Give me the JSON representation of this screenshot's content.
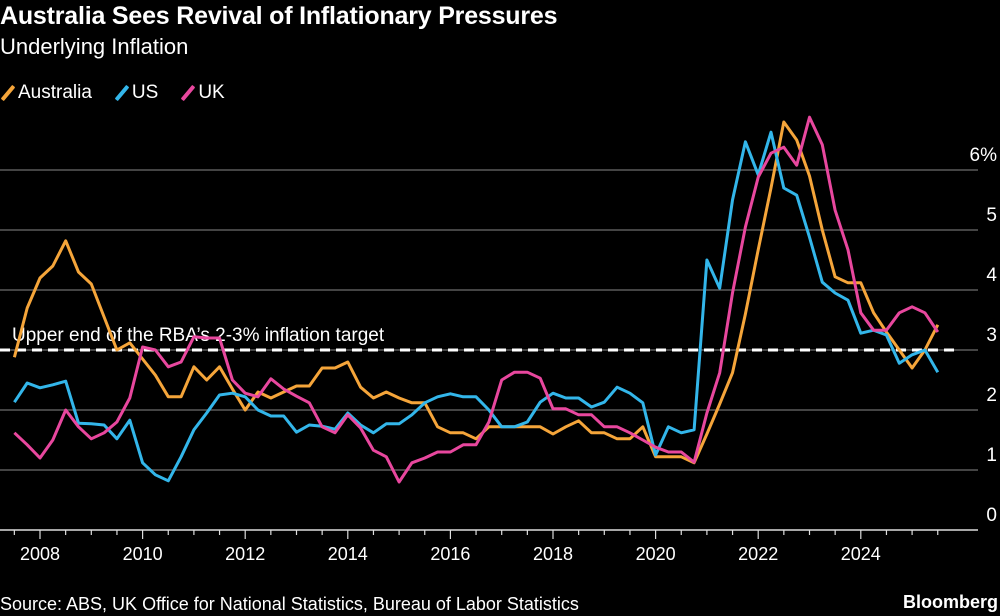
{
  "header": {
    "title": "Australia Sees Revival of Inflationary Pressures",
    "subtitle": "Underlying Inflation"
  },
  "footer": {
    "source": "Source: ABS, UK Office for National Statistics, Bureau of Labor Statistics",
    "logo": "Bloomberg"
  },
  "chart_data": {
    "type": "line",
    "title": "Australia Sees Revival of Inflationary Pressures",
    "subtitle": "Underlying Inflation",
    "x_start": "2007Q3",
    "x_frequency": "quarterly",
    "x_ticks": [
      "2008",
      "2010",
      "2012",
      "2014",
      "2016",
      "2018",
      "2020",
      "2022",
      "2024"
    ],
    "y_ticks": [
      "0",
      "1",
      "2",
      "3",
      "4",
      "5",
      "6%"
    ],
    "ylim": [
      0,
      6.8
    ],
    "grid": true,
    "legend_position": "top-left",
    "annotation": {
      "text": "Upper end of the RBA’s 2-3% inflation target",
      "value": 3
    },
    "series": [
      {
        "name": "Australia",
        "color": "#f5a53a",
        "values": [
          2.88,
          3.7,
          4.2,
          4.4,
          4.82,
          4.3,
          4.1,
          3.55,
          3.0,
          3.12,
          2.85,
          2.58,
          2.22,
          2.22,
          2.72,
          2.5,
          2.72,
          2.35,
          2.0,
          2.3,
          2.2,
          2.3,
          2.4,
          2.4,
          2.7,
          2.7,
          2.8,
          2.38,
          2.2,
          2.3,
          2.2,
          2.12,
          2.12,
          1.72,
          1.62,
          1.62,
          1.52,
          1.72,
          1.72,
          1.72,
          1.72,
          1.72,
          1.6,
          1.72,
          1.82,
          1.62,
          1.62,
          1.52,
          1.52,
          1.72,
          1.22,
          1.22,
          1.22,
          1.12,
          1.6,
          2.1,
          2.62,
          3.6,
          4.67,
          5.7,
          6.8,
          6.5,
          5.9,
          5.0,
          4.22,
          4.12,
          4.12,
          3.62,
          3.3,
          3.0,
          2.7,
          3.0,
          3.42
        ]
      },
      {
        "name": "US",
        "color": "#33b6ea",
        "values": [
          2.13,
          2.45,
          2.37,
          2.42,
          2.48,
          1.78,
          1.77,
          1.75,
          1.52,
          1.83,
          1.12,
          0.92,
          0.82,
          1.22,
          1.67,
          1.95,
          2.25,
          2.28,
          2.22,
          2.0,
          1.9,
          1.9,
          1.63,
          1.75,
          1.73,
          1.68,
          1.95,
          1.75,
          1.62,
          1.77,
          1.77,
          1.92,
          2.12,
          2.22,
          2.27,
          2.22,
          2.22,
          2.0,
          1.72,
          1.72,
          1.8,
          2.13,
          2.28,
          2.2,
          2.2,
          2.05,
          2.13,
          2.38,
          2.28,
          2.12,
          1.25,
          1.72,
          1.62,
          1.67,
          4.5,
          4.03,
          5.5,
          6.47,
          5.92,
          6.63,
          5.7,
          5.58,
          4.88,
          4.13,
          3.95,
          3.83,
          3.28,
          3.33,
          3.25,
          2.78,
          2.92,
          3.0,
          2.63
        ]
      },
      {
        "name": "UK",
        "color": "#e8479e",
        "values": [
          1.62,
          1.42,
          1.2,
          1.5,
          2.0,
          1.72,
          1.52,
          1.62,
          1.8,
          2.2,
          3.05,
          3.0,
          2.72,
          2.8,
          3.22,
          3.2,
          3.2,
          2.5,
          2.28,
          2.22,
          2.52,
          2.35,
          2.23,
          2.12,
          1.72,
          1.62,
          1.92,
          1.7,
          1.33,
          1.22,
          0.8,
          1.12,
          1.2,
          1.3,
          1.3,
          1.42,
          1.42,
          1.8,
          2.5,
          2.63,
          2.63,
          2.53,
          2.02,
          2.02,
          1.92,
          1.92,
          1.72,
          1.72,
          1.62,
          1.5,
          1.38,
          1.3,
          1.3,
          1.13,
          1.95,
          2.62,
          3.95,
          5.05,
          5.88,
          6.28,
          6.38,
          6.08,
          6.88,
          6.42,
          5.33,
          4.67,
          3.62,
          3.33,
          3.33,
          3.62,
          3.72,
          3.62,
          3.3
        ]
      }
    ]
  }
}
